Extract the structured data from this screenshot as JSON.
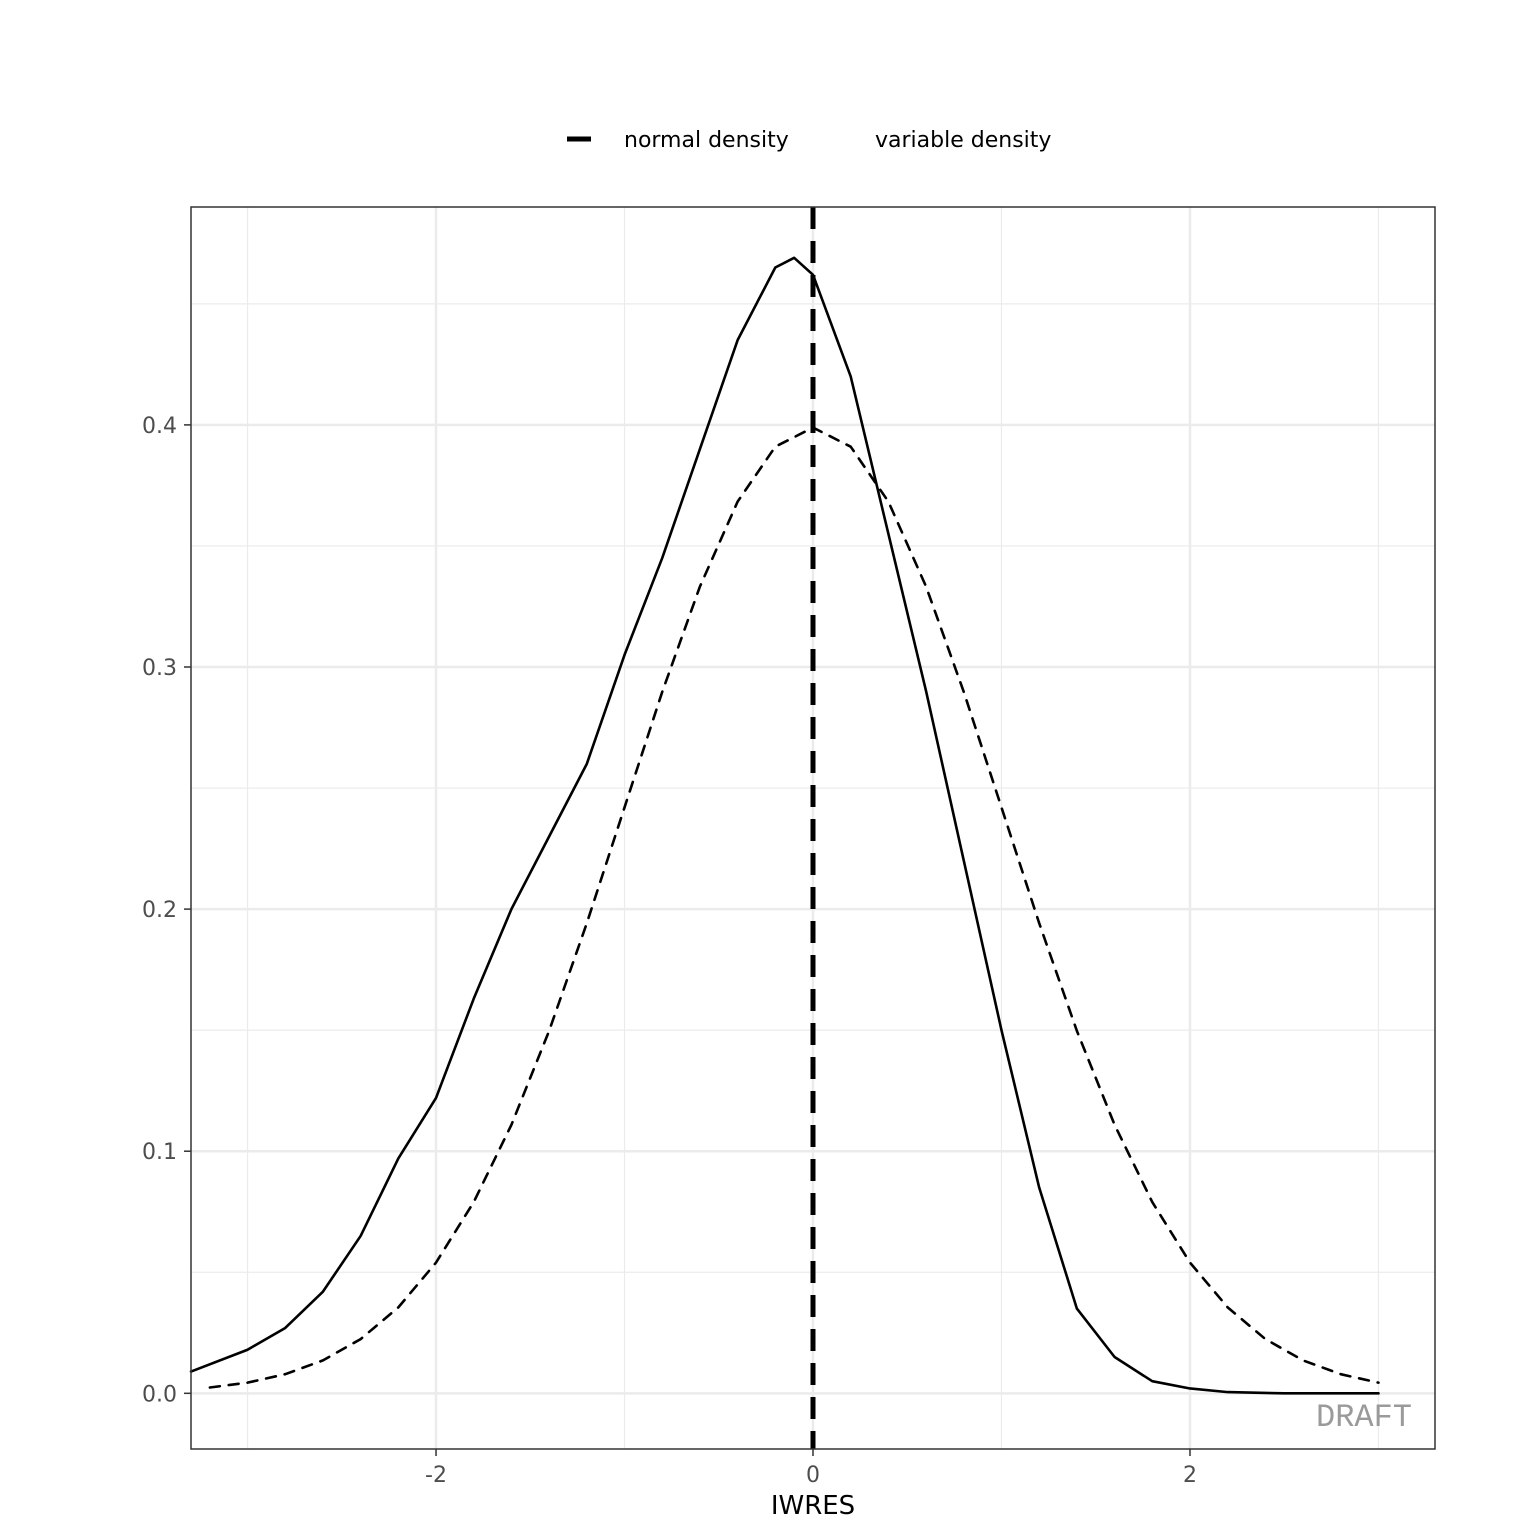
{
  "chart_data": {
    "type": "line",
    "xlabel": "IWRES",
    "ylabel": "",
    "xlim": [
      -3.3,
      3.3
    ],
    "ylim": [
      -0.023,
      0.49
    ],
    "x_ticks": [
      -2,
      0,
      2
    ],
    "x_tick_labels": [
      "-2",
      "0",
      "2"
    ],
    "y_ticks": [
      0.0,
      0.1,
      0.2,
      0.3,
      0.4
    ],
    "y_tick_labels": [
      "0.0",
      "0.1",
      "0.2",
      "0.3",
      "0.4"
    ],
    "grid": true,
    "legend": {
      "position": "top",
      "entries": [
        {
          "label": "normal density",
          "style": "dashed"
        },
        {
          "label": "variable density",
          "style": "solid"
        }
      ]
    },
    "reference_line": {
      "x": 0,
      "style": "dashed"
    },
    "watermark": "DRAFT",
    "series": [
      {
        "name": "variable density",
        "style": "solid",
        "x": [
          -3.3,
          -3.0,
          -2.8,
          -2.6,
          -2.4,
          -2.2,
          -2.0,
          -1.8,
          -1.6,
          -1.4,
          -1.2,
          -1.0,
          -0.8,
          -0.6,
          -0.4,
          -0.2,
          -0.1,
          0.0,
          0.2,
          0.4,
          0.6,
          0.8,
          1.0,
          1.2,
          1.4,
          1.6,
          1.8,
          2.0,
          2.2,
          2.5,
          3.0
        ],
        "y": [
          0.009,
          0.018,
          0.027,
          0.042,
          0.065,
          0.097,
          0.122,
          0.163,
          0.2,
          0.23,
          0.26,
          0.305,
          0.345,
          0.39,
          0.435,
          0.465,
          0.469,
          0.462,
          0.42,
          0.355,
          0.29,
          0.22,
          0.15,
          0.085,
          0.035,
          0.015,
          0.005,
          0.002,
          0.0005,
          0.0,
          0.0
        ]
      },
      {
        "name": "normal density",
        "style": "dashed",
        "x": [
          -3.2,
          -3.0,
          -2.8,
          -2.6,
          -2.4,
          -2.2,
          -2.0,
          -1.8,
          -1.6,
          -1.4,
          -1.2,
          -1.0,
          -0.8,
          -0.6,
          -0.4,
          -0.2,
          0.0,
          0.2,
          0.4,
          0.6,
          0.8,
          1.0,
          1.2,
          1.4,
          1.6,
          1.8,
          2.0,
          2.2,
          2.4,
          2.6,
          2.8,
          3.0
        ],
        "y": [
          0.0024,
          0.0044,
          0.0079,
          0.0136,
          0.0224,
          0.0355,
          0.054,
          0.079,
          0.1109,
          0.1497,
          0.1942,
          0.242,
          0.2897,
          0.3332,
          0.3683,
          0.391,
          0.3989,
          0.391,
          0.3683,
          0.3332,
          0.2897,
          0.242,
          0.1942,
          0.1497,
          0.1109,
          0.079,
          0.054,
          0.0355,
          0.0224,
          0.0136,
          0.0079,
          0.0044
        ]
      }
    ]
  }
}
